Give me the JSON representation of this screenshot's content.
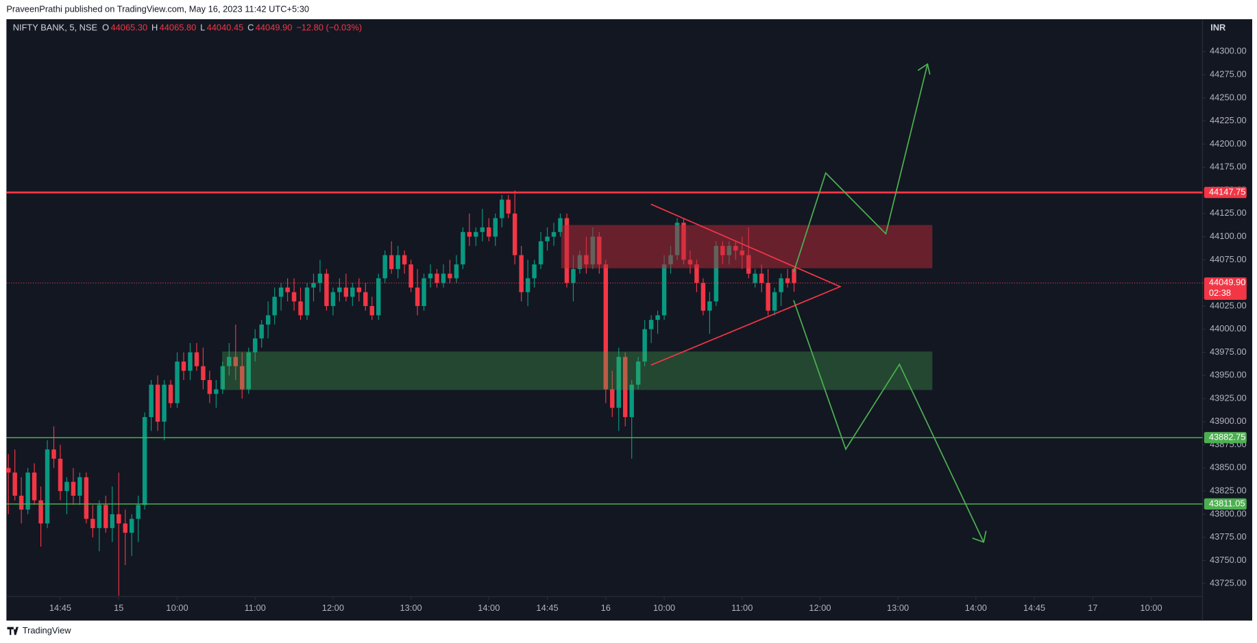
{
  "chart_data": {
    "type": "candlestick",
    "publisher": "PraveenPrathi published on TradingView.com, May 16, 2023 11:42 UTC+5:30",
    "symbol": "NIFTY BANK, 5, NSE",
    "legend": [
      {
        "label": "O",
        "value": "44065.30"
      },
      {
        "label": "H",
        "value": "44065.80"
      },
      {
        "label": "L",
        "value": "44040.45"
      },
      {
        "label": "C",
        "value": "44049.90"
      }
    ],
    "change": "−12.80 (−0.03%)",
    "currency": "INR",
    "brand": "TradingView",
    "up_color": "#089981",
    "down_color": "#f23645",
    "candles": [
      [
        43850,
        43865,
        43800,
        43845
      ],
      [
        43845,
        43870,
        43815,
        43820
      ],
      [
        43820,
        43840,
        43790,
        43805
      ],
      [
        43805,
        43850,
        43800,
        43845
      ],
      [
        43845,
        43855,
        43810,
        43815
      ],
      [
        43815,
        43830,
        43765,
        43790
      ],
      [
        43790,
        43880,
        43785,
        43870
      ],
      [
        43870,
        43895,
        43850,
        43860
      ],
      [
        43860,
        43875,
        43815,
        43825
      ],
      [
        43825,
        43840,
        43800,
        43835
      ],
      [
        43835,
        43850,
        43810,
        43820
      ],
      [
        43820,
        43845,
        43810,
        43840
      ],
      [
        43840,
        43845,
        43790,
        43795
      ],
      [
        43795,
        43810,
        43775,
        43785
      ],
      [
        43785,
        43815,
        43760,
        43810
      ],
      [
        43810,
        43820,
        43780,
        43785
      ],
      [
        43785,
        43830,
        43770,
        43800
      ],
      [
        43800,
        43845,
        43712,
        43790
      ],
      [
        43790,
        43805,
        43745,
        43780
      ],
      [
        43780,
        43800,
        43755,
        43795
      ],
      [
        43795,
        43820,
        43770,
        43810
      ],
      [
        43810,
        43910,
        43805,
        43905
      ],
      [
        43905,
        43945,
        43890,
        43940
      ],
      [
        43940,
        43950,
        43890,
        43900
      ],
      [
        43900,
        43945,
        43880,
        43940
      ],
      [
        43940,
        43945,
        43915,
        43920
      ],
      [
        43920,
        43975,
        43915,
        43965
      ],
      [
        43965,
        43975,
        43945,
        43955
      ],
      [
        43955,
        43985,
        43945,
        43975
      ],
      [
        43975,
        43985,
        43955,
        43960
      ],
      [
        43960,
        43980,
        43935,
        43945
      ],
      [
        43945,
        43955,
        43920,
        43930
      ],
      [
        43930,
        43945,
        43915,
        43935
      ],
      [
        43935,
        43965,
        43930,
        43960
      ],
      [
        43960,
        43985,
        43950,
        43970
      ],
      [
        43970,
        44005,
        43945,
        43960
      ],
      [
        43960,
        43975,
        43925,
        43935
      ],
      [
        43935,
        43980,
        43930,
        43975
      ],
      [
        43975,
        44000,
        43965,
        43990
      ],
      [
        43990,
        44010,
        43980,
        44005
      ],
      [
        44005,
        44030,
        43990,
        44015
      ],
      [
        44015,
        44045,
        44005,
        44035
      ],
      [
        44035,
        44050,
        44020,
        44045
      ],
      [
        44045,
        44055,
        44030,
        44040
      ],
      [
        44040,
        44055,
        44020,
        44030
      ],
      [
        44030,
        44045,
        44010,
        44015
      ],
      [
        44015,
        44050,
        44010,
        44045
      ],
      [
        44045,
        44060,
        44030,
        44050
      ],
      [
        44050,
        44075,
        44040,
        44060
      ],
      [
        44060,
        44065,
        44020,
        44025
      ],
      [
        44025,
        44045,
        44015,
        44040
      ],
      [
        44040,
        44055,
        44030,
        44045
      ],
      [
        44045,
        44060,
        44030,
        44035
      ],
      [
        44035,
        44050,
        44025,
        44045
      ],
      [
        44045,
        44055,
        44030,
        44040
      ],
      [
        44040,
        44050,
        44020,
        44025
      ],
      [
        44025,
        44035,
        44010,
        44015
      ],
      [
        44015,
        44060,
        44010,
        44055
      ],
      [
        44055,
        44085,
        44050,
        44080
      ],
      [
        44080,
        44095,
        44060,
        44065
      ],
      [
        44065,
        44090,
        44055,
        44080
      ],
      [
        44080,
        44085,
        44060,
        44070
      ],
      [
        44070,
        44075,
        44040,
        44045
      ],
      [
        44045,
        44065,
        44015,
        44025
      ],
      [
        44025,
        44060,
        44020,
        44055
      ],
      [
        44055,
        44070,
        44045,
        44060
      ],
      [
        44060,
        44065,
        44045,
        44050
      ],
      [
        44050,
        44070,
        44045,
        44060
      ],
      [
        44060,
        44075,
        44050,
        44055
      ],
      [
        44055,
        44080,
        44050,
        44070
      ],
      [
        44070,
        44110,
        44065,
        44105
      ],
      [
        44105,
        44125,
        44090,
        44100
      ],
      [
        44100,
        44110,
        44090,
        44105
      ],
      [
        44105,
        44130,
        44095,
        44110
      ],
      [
        44110,
        44120,
        44095,
        44100
      ],
      [
        44100,
        44125,
        44090,
        44120
      ],
      [
        44120,
        44145,
        44110,
        44140
      ],
      [
        44140,
        44145,
        44120,
        44125
      ],
      [
        44125,
        44150,
        44070,
        44080
      ],
      [
        44080,
        44090,
        44030,
        44040
      ],
      [
        44040,
        44075,
        44025,
        44055
      ],
      [
        44055,
        44075,
        44045,
        44070
      ],
      [
        44070,
        44105,
        44065,
        44095
      ],
      [
        44095,
        44110,
        44085,
        44100
      ],
      [
        44100,
        44115,
        44090,
        44105
      ],
      [
        44105,
        44125,
        44100,
        44120
      ],
      [
        44120,
        44125,
        44045,
        44050
      ],
      [
        44050,
        44080,
        44030,
        44065
      ],
      [
        44065,
        44085,
        44060,
        44080
      ],
      [
        44080,
        44100,
        44060,
        44070
      ],
      [
        44070,
        44110,
        44065,
        44100
      ],
      [
        44100,
        44105,
        44060,
        44070
      ],
      [
        44070,
        44075,
        43920,
        43935
      ],
      [
        43935,
        43955,
        43905,
        43915
      ],
      [
        43915,
        43980,
        43890,
        43970
      ],
      [
        43970,
        43975,
        43895,
        43905
      ],
      [
        43905,
        43945,
        43860,
        43940
      ],
      [
        43940,
        43970,
        43935,
        43965
      ],
      [
        43965,
        44010,
        43960,
        44000
      ],
      [
        44000,
        44015,
        43985,
        44010
      ],
      [
        44010,
        44020,
        43995,
        44015
      ],
      [
        44015,
        44080,
        44010,
        44070
      ],
      [
        44070,
        44090,
        44060,
        44080
      ],
      [
        44080,
        44120,
        44075,
        44115
      ],
      [
        44115,
        44120,
        44070,
        44075
      ],
      [
        44075,
        44085,
        44060,
        44070
      ],
      [
        44070,
        44075,
        44040,
        44050
      ],
      [
        44050,
        44055,
        44015,
        44020
      ],
      [
        44020,
        44040,
        43995,
        44030
      ],
      [
        44030,
        44095,
        44025,
        44090
      ],
      [
        44090,
        44095,
        44070,
        44080
      ],
      [
        44080,
        44095,
        44070,
        44090
      ],
      [
        44090,
        44095,
        44075,
        44085
      ],
      [
        44085,
        44100,
        44065,
        44080
      ],
      [
        44080,
        44110,
        44055,
        44060
      ],
      [
        44050,
        44065,
        44045,
        44060
      ],
      [
        44060,
        44070,
        44040,
        44050
      ],
      [
        44050,
        44065,
        44015,
        44020
      ],
      [
        44020,
        44045,
        44015,
        44040
      ],
      [
        44040,
        44060,
        44025,
        44055
      ],
      [
        44055,
        44065,
        44045,
        44050
      ],
      [
        44065.3,
        44065.8,
        44040.45,
        44049.9
      ]
    ],
    "xlim": [
      -0.3,
      183.9
    ],
    "xticks": [
      {
        "value": 8,
        "label": "14:45"
      },
      {
        "value": 17,
        "label": "15"
      },
      {
        "value": 26,
        "label": "10:00"
      },
      {
        "value": 38,
        "label": "11:00"
      },
      {
        "value": 50,
        "label": "12:00"
      },
      {
        "value": 62,
        "label": "13:00"
      },
      {
        "value": 74,
        "label": "14:00"
      },
      {
        "value": 83,
        "label": "14:45"
      },
      {
        "value": 92,
        "label": "16"
      },
      {
        "value": 101,
        "label": "10:00"
      },
      {
        "value": 113,
        "label": "11:00"
      },
      {
        "value": 125,
        "label": "12:00"
      },
      {
        "value": 137,
        "label": "13:00"
      },
      {
        "value": 149,
        "label": "14:00"
      },
      {
        "value": 158,
        "label": "14:45"
      },
      {
        "value": 167,
        "label": "17"
      },
      {
        "value": 176,
        "label": "10:00"
      }
    ],
    "ylim": [
      43711,
      44335
    ],
    "yticks": [
      {
        "value": 43725,
        "label": "43725.00"
      },
      {
        "value": 43750,
        "label": "43750.00"
      },
      {
        "value": 43775,
        "label": "43775.00"
      },
      {
        "value": 43800,
        "label": "43800.00"
      },
      {
        "value": 43825,
        "label": "43825.00"
      },
      {
        "value": 43850,
        "label": "43850.00"
      },
      {
        "value": 43875,
        "label": "43875.00"
      },
      {
        "value": 43900,
        "label": "43900.00"
      },
      {
        "value": 43925,
        "label": "43925.00"
      },
      {
        "value": 43950,
        "label": "43950.00"
      },
      {
        "value": 43975,
        "label": "43975.00"
      },
      {
        "value": 44000,
        "label": "44000.00"
      },
      {
        "value": 44025,
        "label": "44025.00"
      },
      {
        "value": 44050,
        "label": "44050.00"
      },
      {
        "value": 44075,
        "label": "44075.00"
      },
      {
        "value": 44100,
        "label": "44100.00"
      },
      {
        "value": 44125,
        "label": "44125.00"
      },
      {
        "value": 44150,
        "label": "44150.00"
      },
      {
        "value": 44175,
        "label": "44175.00"
      },
      {
        "value": 44200,
        "label": "44200.00"
      },
      {
        "value": 44225,
        "label": "44225.00"
      },
      {
        "value": 44250,
        "label": "44250.00"
      },
      {
        "value": 44275,
        "label": "44275.00"
      },
      {
        "value": 44300,
        "label": "44300.00"
      }
    ],
    "price_lines": [
      {
        "value": 44147.75,
        "label": "44147.75",
        "color": "#f23645"
      },
      {
        "value": 43882.75,
        "label": "43882.75",
        "color": "#4caf50"
      },
      {
        "value": 43811.05,
        "label": "43811.05",
        "color": "#4caf50"
      }
    ],
    "last_price": {
      "value": 44049.9,
      "label": "44049.90",
      "countdown": "02:38",
      "color": "#f23645"
    },
    "grid": false
  }
}
